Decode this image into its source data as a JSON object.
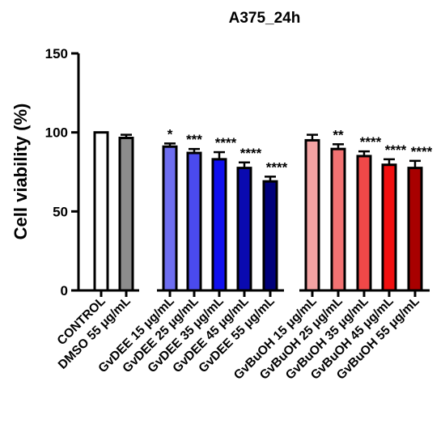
{
  "chart_data": {
    "type": "bar",
    "title": "A375_24h",
    "ylabel": "Cell viability (%)",
    "xlabel": "",
    "ylim": [
      0,
      150
    ],
    "yticks": [
      0,
      50,
      100,
      150
    ],
    "grid": false,
    "categories": [
      "CONTROL",
      "DMSO 55 μg/mL",
      "GvDEE 15 μg/mL",
      "GvDEE 25 μg/mL",
      "GvDEE 35 μg/mL",
      "GvDEE 45 μg/mL",
      "GvDEE 55 μg/mL",
      "GvBuOH 15 μg/mL",
      "GvBuOH 25 μg/mL",
      "GvBuOH 35 μg/mL",
      "GvBuOH 45 μg/mL",
      "GvBuOH 55 μg/mL"
    ],
    "values": [
      100,
      96.5,
      91,
      87,
      83,
      77.5,
      69,
      95,
      89.5,
      85,
      79.5,
      77.5
    ],
    "errors": [
      0,
      2,
      2,
      2.5,
      4.5,
      3.5,
      3,
      3.5,
      3,
      3,
      3.5,
      4.5
    ],
    "significance": [
      "",
      "",
      "*",
      "***",
      "****",
      "****",
      "****",
      "",
      "**",
      "****",
      "****",
      "****"
    ],
    "colors": [
      "#ffffff",
      "#8c8c8c",
      "#6e6ef0",
      "#4a4aee",
      "#1010ee",
      "#0a0ab0",
      "#00007a",
      "#f4a3a3",
      "#f27272",
      "#f04848",
      "#f01010",
      "#a80000"
    ]
  }
}
